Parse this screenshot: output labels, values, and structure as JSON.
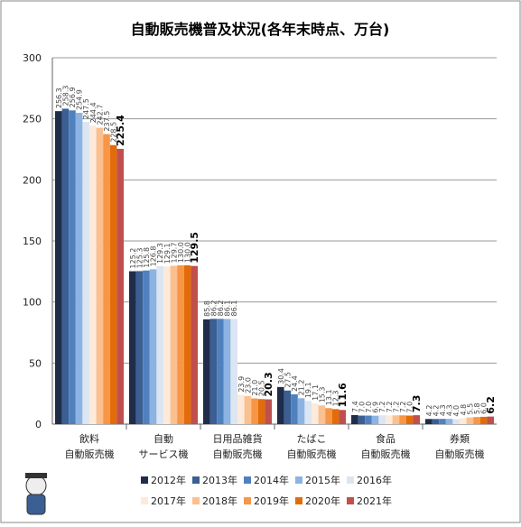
{
  "chart_data": {
    "type": "bar",
    "title": "自動販売機普及状況(各年末時点、万台)",
    "categories": [
      "飲料\n自動販売機",
      "自動\nサービス機",
      "日用品雑貨\n自動販売機",
      "たばこ\n自動販売機",
      "食品\n自動販売機",
      "券類\n自動販売機"
    ],
    "ylim": [
      0,
      300
    ],
    "yticks": [
      0,
      50,
      100,
      150,
      200,
      250,
      300
    ],
    "grid": true,
    "legend": "bottom",
    "series": [
      {
        "name": "2012年",
        "color": "#1f2d4a",
        "values": [
          256.3,
          125.2,
          85.8,
          30.4,
          7.4,
          4.2
        ],
        "value_labels": [
          "256.3",
          "125.2",
          "85.8",
          "30.4",
          "7.4",
          "4.2"
        ]
      },
      {
        "name": "2013年",
        "color": "#3b5f93",
        "values": [
          258.3,
          125.3,
          86.2,
          27.5,
          7.0,
          4.2
        ],
        "value_labels": [
          "258.3",
          "125.3",
          "86.2",
          "27.5",
          "7.0",
          "4.2"
        ]
      },
      {
        "name": "2014年",
        "color": "#4f81bd",
        "values": [
          256.9,
          125.8,
          86.2,
          24.4,
          7.0,
          4.3
        ],
        "value_labels": [
          "256.9",
          "125.8",
          "86.2",
          "24.4",
          "7.0",
          "4.3"
        ]
      },
      {
        "name": "2015年",
        "color": "#8db3e2",
        "values": [
          254.9,
          126.8,
          86.1,
          21.2,
          6.9,
          4.3
        ],
        "value_labels": [
          "254.9",
          "126.8",
          "86.1",
          "21.2",
          "6.9",
          "4.3"
        ]
      },
      {
        "name": "2016年",
        "color": "#dce6f2",
        "values": [
          247.5,
          129.3,
          86.1,
          19.1,
          7.2,
          4.0
        ],
        "value_labels": [
          "247.5",
          "129.3",
          "86.1",
          "19.1",
          "7.2",
          "4.0"
        ]
      },
      {
        "name": "2017年",
        "color": "#fdeada",
        "values": [
          244.4,
          129.1,
          23.9,
          17.1,
          7.2,
          4.8
        ],
        "value_labels": [
          "244.4",
          "129.1",
          "23.9",
          "17.1",
          "7.2",
          "4.8"
        ]
      },
      {
        "name": "2018年",
        "color": "#fac090",
        "values": [
          242.7,
          129.7,
          23.0,
          15.3,
          7.2,
          5.5
        ],
        "value_labels": [
          "242.7",
          "129.7",
          "23.0",
          "15.3",
          "7.2",
          "5.5"
        ]
      },
      {
        "name": "2019年",
        "color": "#f79646",
        "values": [
          237.5,
          130.0,
          21.0,
          13.1,
          7.2,
          5.8
        ],
        "value_labels": [
          "237.5",
          "130.0",
          "21.0",
          "13.1",
          "7.2",
          "5.8"
        ]
      },
      {
        "name": "2020年",
        "color": "#e36c0a",
        "values": [
          228.5,
          130.0,
          20.5,
          12.3,
          7.0,
          6.0
        ],
        "value_labels": [
          "228.5",
          "130.0",
          "20.5",
          "12.3",
          "7.0",
          "6.0"
        ]
      },
      {
        "name": "2021年",
        "color": "#c0504d",
        "values": [
          225.4,
          129.5,
          20.3,
          11.6,
          7.3,
          6.2
        ],
        "value_labels": [
          "225.4",
          "129.5",
          "20.3",
          "11.6",
          "7.3",
          "6.2"
        ]
      }
    ]
  }
}
